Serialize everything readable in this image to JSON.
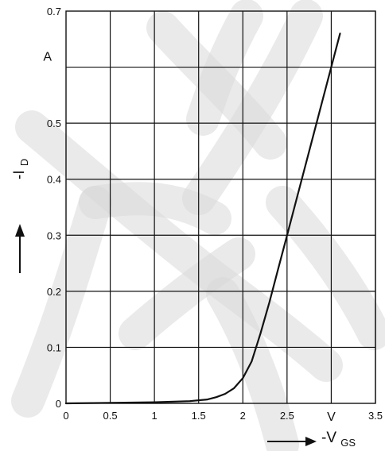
{
  "chart_data": {
    "type": "line",
    "title": "",
    "xlabel": "-V",
    "xlabel_subscript": "GS",
    "ylabel": "-I",
    "ylabel_subscript": "D",
    "x_unit": "V",
    "y_unit": "A",
    "xlim": [
      0,
      3.5
    ],
    "ylim": [
      0,
      0.7
    ],
    "x_ticks": [
      "0",
      "0.5",
      "1",
      "1.5",
      "2",
      "2.5",
      "3.5"
    ],
    "x_tick_values": [
      0,
      0.5,
      1,
      1.5,
      2,
      2.5,
      3.5
    ],
    "y_ticks": [
      "0",
      "0.1",
      "0.2",
      "0.3",
      "0.4",
      "0.5",
      "0.7"
    ],
    "y_tick_values": [
      0,
      0.1,
      0.2,
      0.3,
      0.4,
      0.5,
      0.7
    ],
    "grid": true,
    "series": [
      {
        "x": [
          0,
          0.5,
          1.0,
          1.4,
          1.6,
          1.7,
          1.8,
          1.9,
          2.0,
          2.1,
          2.2,
          2.3,
          2.4,
          2.5,
          2.6,
          2.7,
          2.8,
          2.9,
          3.0,
          3.1
        ],
        "y": [
          0,
          0.001,
          0.002,
          0.004,
          0.007,
          0.011,
          0.017,
          0.027,
          0.045,
          0.075,
          0.125,
          0.18,
          0.24,
          0.3,
          0.36,
          0.42,
          0.48,
          0.54,
          0.6,
          0.66
        ],
        "color": "#111111"
      }
    ]
  }
}
